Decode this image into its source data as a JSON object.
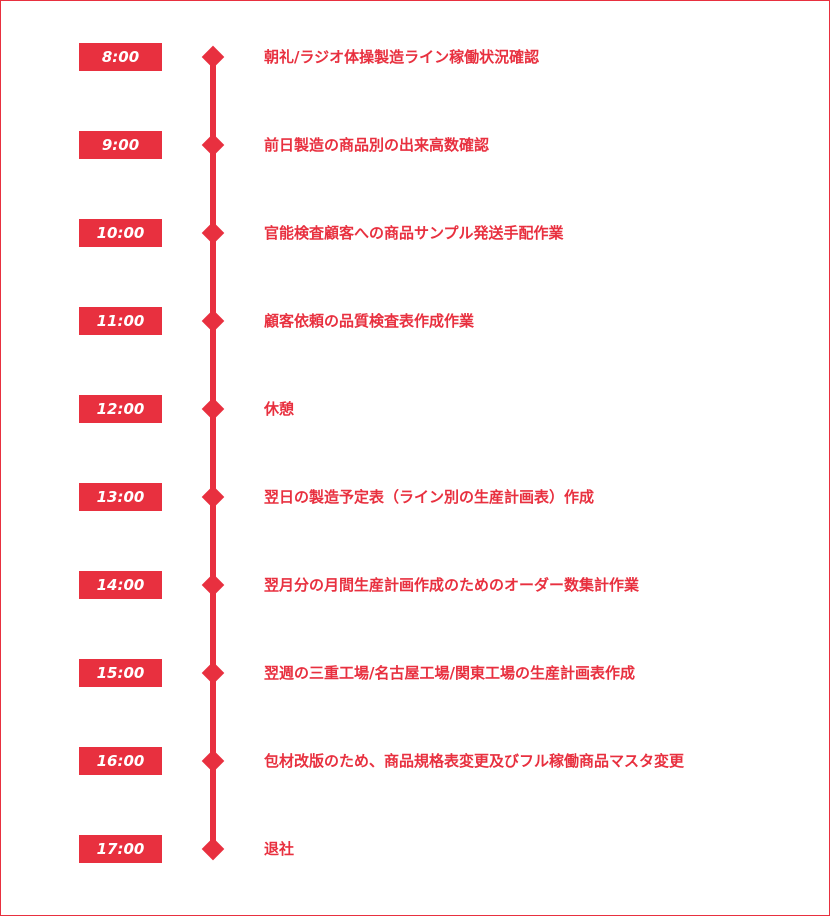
{
  "schedule": [
    {
      "time": "8:00",
      "activity": "朝礼/ラジオ体操製造ライン稼働状況確認"
    },
    {
      "time": "9:00",
      "activity": "前日製造の商品別の出来高数確認"
    },
    {
      "time": "10:00",
      "activity": "官能検査顧客への商品サンプル発送手配作業"
    },
    {
      "time": "11:00",
      "activity": "顧客依頼の品質検査表作成作業"
    },
    {
      "time": "12:00",
      "activity": "休憩"
    },
    {
      "time": "13:00",
      "activity": "翌日の製造予定表（ライン別の生産計画表）作成"
    },
    {
      "time": "14:00",
      "activity": "翌月分の月間生産計画作成のためのオーダー数集計作業"
    },
    {
      "time": "15:00",
      "activity": "翌週の三重工場/名古屋工場/関東工場の生産計画表作成"
    },
    {
      "time": "16:00",
      "activity": "包材改版のため、商品規格表変更及びフル稼働商品マスタ変更"
    },
    {
      "time": "17:00",
      "activity": "退社"
    }
  ],
  "colors": {
    "accent": "#e8303f",
    "badge_text": "#ffffff",
    "background": "#ffffff"
  }
}
